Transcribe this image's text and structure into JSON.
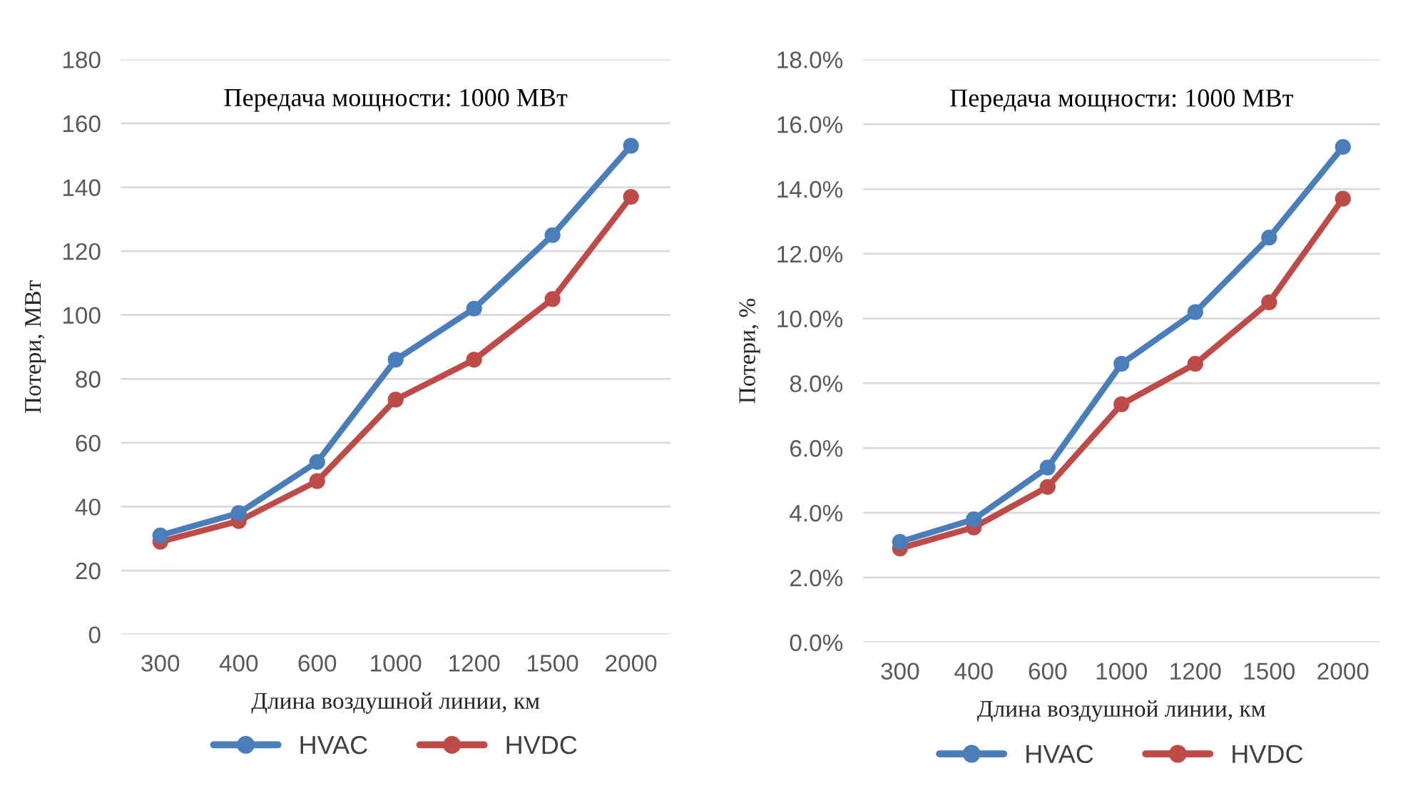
{
  "chart_data": [
    {
      "type": "line",
      "title": "Передача мощности: 1000 МВт",
      "xlabel": "Длина воздушной линии, км",
      "ylabel": "Потери, МВт",
      "categories": [
        "300",
        "400",
        "600",
        "1000",
        "1200",
        "1500",
        "2000"
      ],
      "series": [
        {
          "name": "HVAC",
          "color": "#4a7ebb",
          "values": [
            31,
            38,
            54,
            86,
            102,
            125,
            153
          ]
        },
        {
          "name": "HVDC",
          "color": "#be4b48",
          "values": [
            29,
            35.5,
            48,
            73.5,
            86,
            105,
            137
          ]
        }
      ],
      "ylim": [
        0,
        180
      ],
      "yticks": [
        0,
        20,
        40,
        60,
        80,
        100,
        120,
        140,
        160,
        180
      ],
      "grid": "y",
      "legend": "bottom",
      "marker": "circle",
      "line_style": "solid"
    },
    {
      "type": "line",
      "title": "Передача мощности: 1000 МВт",
      "xlabel": "Длина воздушной линии, км",
      "ylabel": "Потери, %",
      "categories": [
        "300",
        "400",
        "600",
        "1000",
        "1200",
        "1500",
        "2000"
      ],
      "series": [
        {
          "name": "HVAC",
          "color": "#4a7ebb",
          "values": [
            3.1,
            3.8,
            5.4,
            8.6,
            10.2,
            12.5,
            15.3
          ]
        },
        {
          "name": "HVDC",
          "color": "#be4b48",
          "values": [
            2.9,
            3.55,
            4.8,
            7.35,
            8.6,
            10.5,
            13.7
          ]
        }
      ],
      "ylim": [
        0,
        18
      ],
      "yticks": [
        {
          "value": 0,
          "label": "0.0%"
        },
        {
          "value": 2,
          "label": "2.0%"
        },
        {
          "value": 4,
          "label": "4.0%"
        },
        {
          "value": 6,
          "label": "6.0%"
        },
        {
          "value": 8,
          "label": "8.0%"
        },
        {
          "value": 10,
          "label": "10.0%"
        },
        {
          "value": 12,
          "label": "12.0%"
        },
        {
          "value": 14,
          "label": "14.0%"
        },
        {
          "value": 16,
          "label": "16.0%"
        },
        {
          "value": 18,
          "label": "18.0%"
        }
      ],
      "grid": "y",
      "legend": "bottom",
      "marker": "circle",
      "line_style": "solid"
    }
  ]
}
